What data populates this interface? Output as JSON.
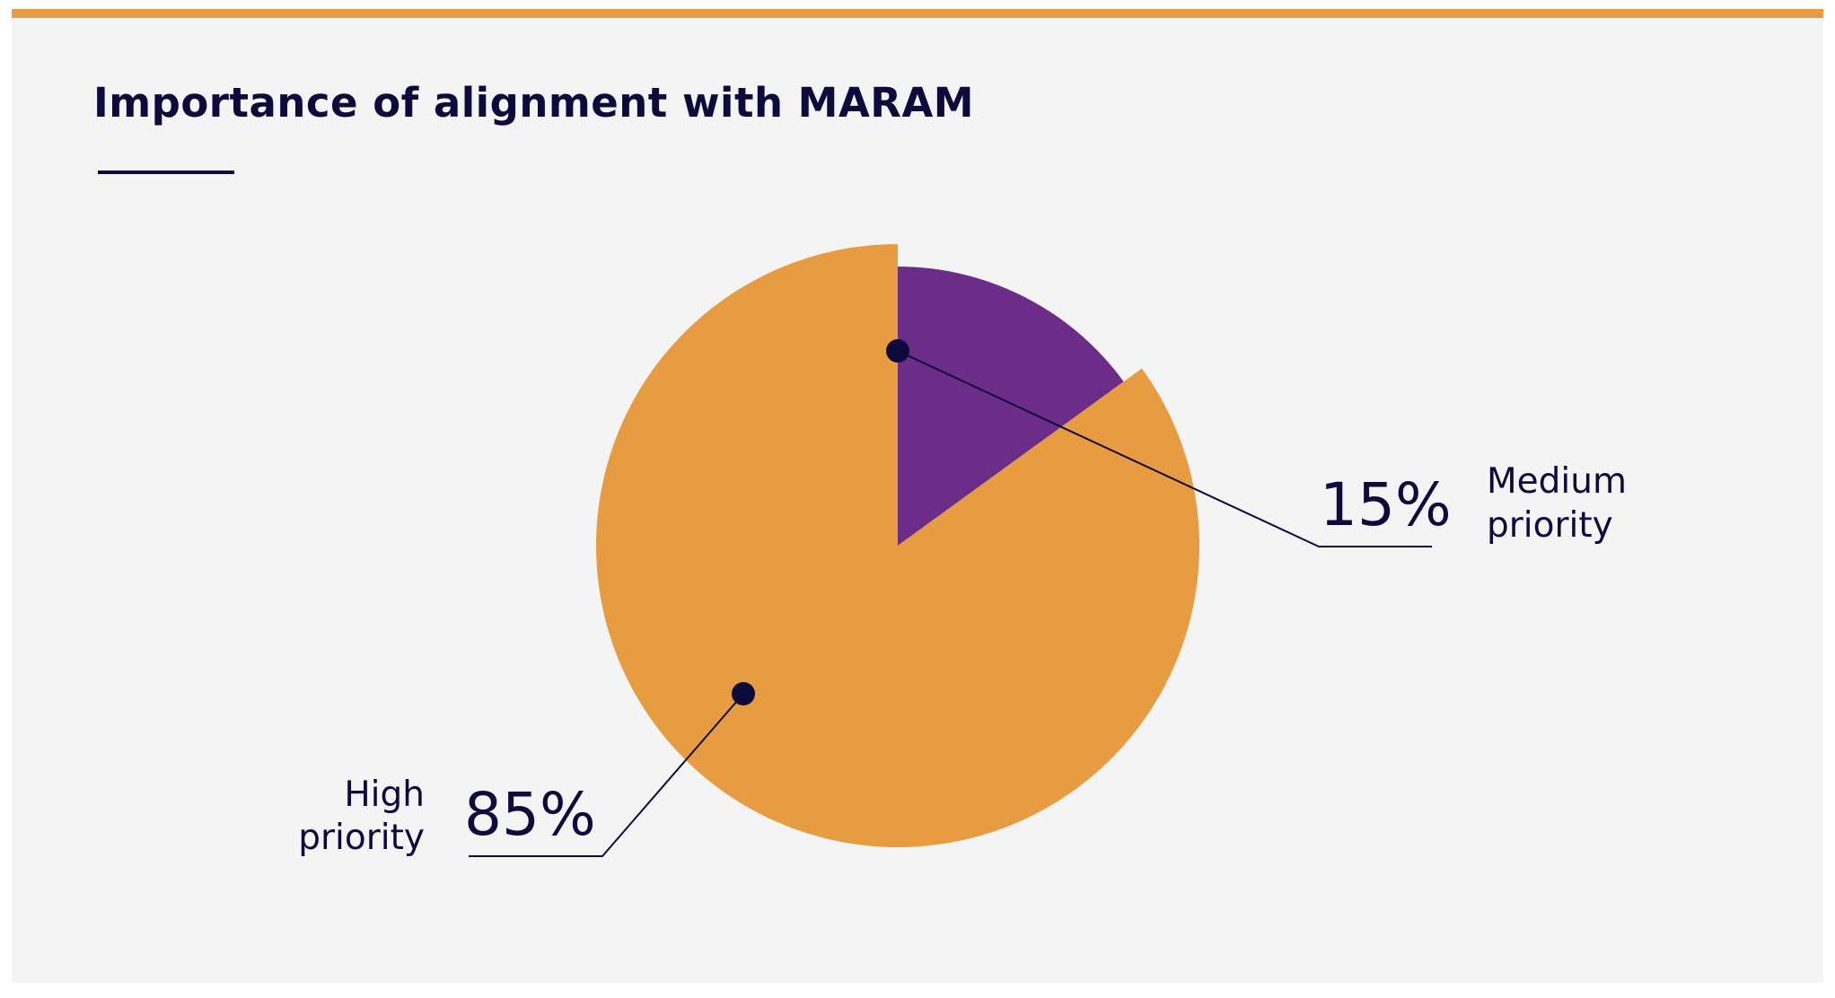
{
  "colors": {
    "accent_bar": "#e89c42",
    "panel_bg": "#f4f4f4",
    "text_dark": "#0f0a3c",
    "leader": "#0f0a3c"
  },
  "chart_data": {
    "type": "pie",
    "title": "Importance of alignment with MARAM",
    "slices": [
      {
        "id": "medium",
        "value": 15,
        "value_label": "15%",
        "label_lines": [
          "Medium",
          "priority"
        ],
        "color": "#6b2d87"
      },
      {
        "id": "high",
        "value": 85,
        "value_label": "85%",
        "label_lines": [
          "High",
          "priority"
        ],
        "color": "#e89c42"
      }
    ],
    "legend": "none"
  }
}
